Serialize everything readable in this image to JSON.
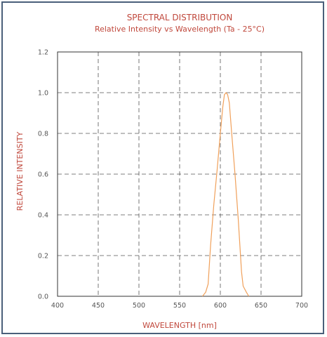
{
  "chart_data": {
    "type": "line",
    "title": "SPECTRAL DISTRIBUTION",
    "subtitle": "Relative Intensity vs Wavelength (Ta - 25°C)",
    "xlabel": "WAVELENGTH [nm]",
    "ylabel": "RELATIVE INTENSITY",
    "xlim": [
      400,
      700
    ],
    "ylim": [
      0,
      1.2
    ],
    "x_ticks": [
      "400",
      "450",
      "500",
      "550",
      "600",
      "650",
      "700"
    ],
    "y_ticks": [
      "0.0",
      "0.2",
      "0.4",
      "0.6",
      "0.8",
      "1.0",
      "1.2"
    ],
    "grid": true,
    "grid_style": "dashed",
    "colors": {
      "line": "#f0a05a",
      "title": "#c0483c",
      "grid": "#555555",
      "frame": "#4a5f7a"
    },
    "series": [
      {
        "values": [
          [
            578,
            0.0
          ],
          [
            582,
            0.02
          ],
          [
            585,
            0.06
          ],
          [
            588,
            0.25
          ],
          [
            592,
            0.45
          ],
          [
            596,
            0.62
          ],
          [
            600,
            0.8
          ],
          [
            603,
            0.93
          ],
          [
            605,
            0.99
          ],
          [
            607,
            1.0
          ],
          [
            609,
            0.99
          ],
          [
            611,
            0.95
          ],
          [
            614,
            0.8
          ],
          [
            618,
            0.6
          ],
          [
            622,
            0.38
          ],
          [
            626,
            0.12
          ],
          [
            628,
            0.05
          ],
          [
            632,
            0.02
          ],
          [
            635,
            0.0
          ]
        ]
      }
    ]
  }
}
